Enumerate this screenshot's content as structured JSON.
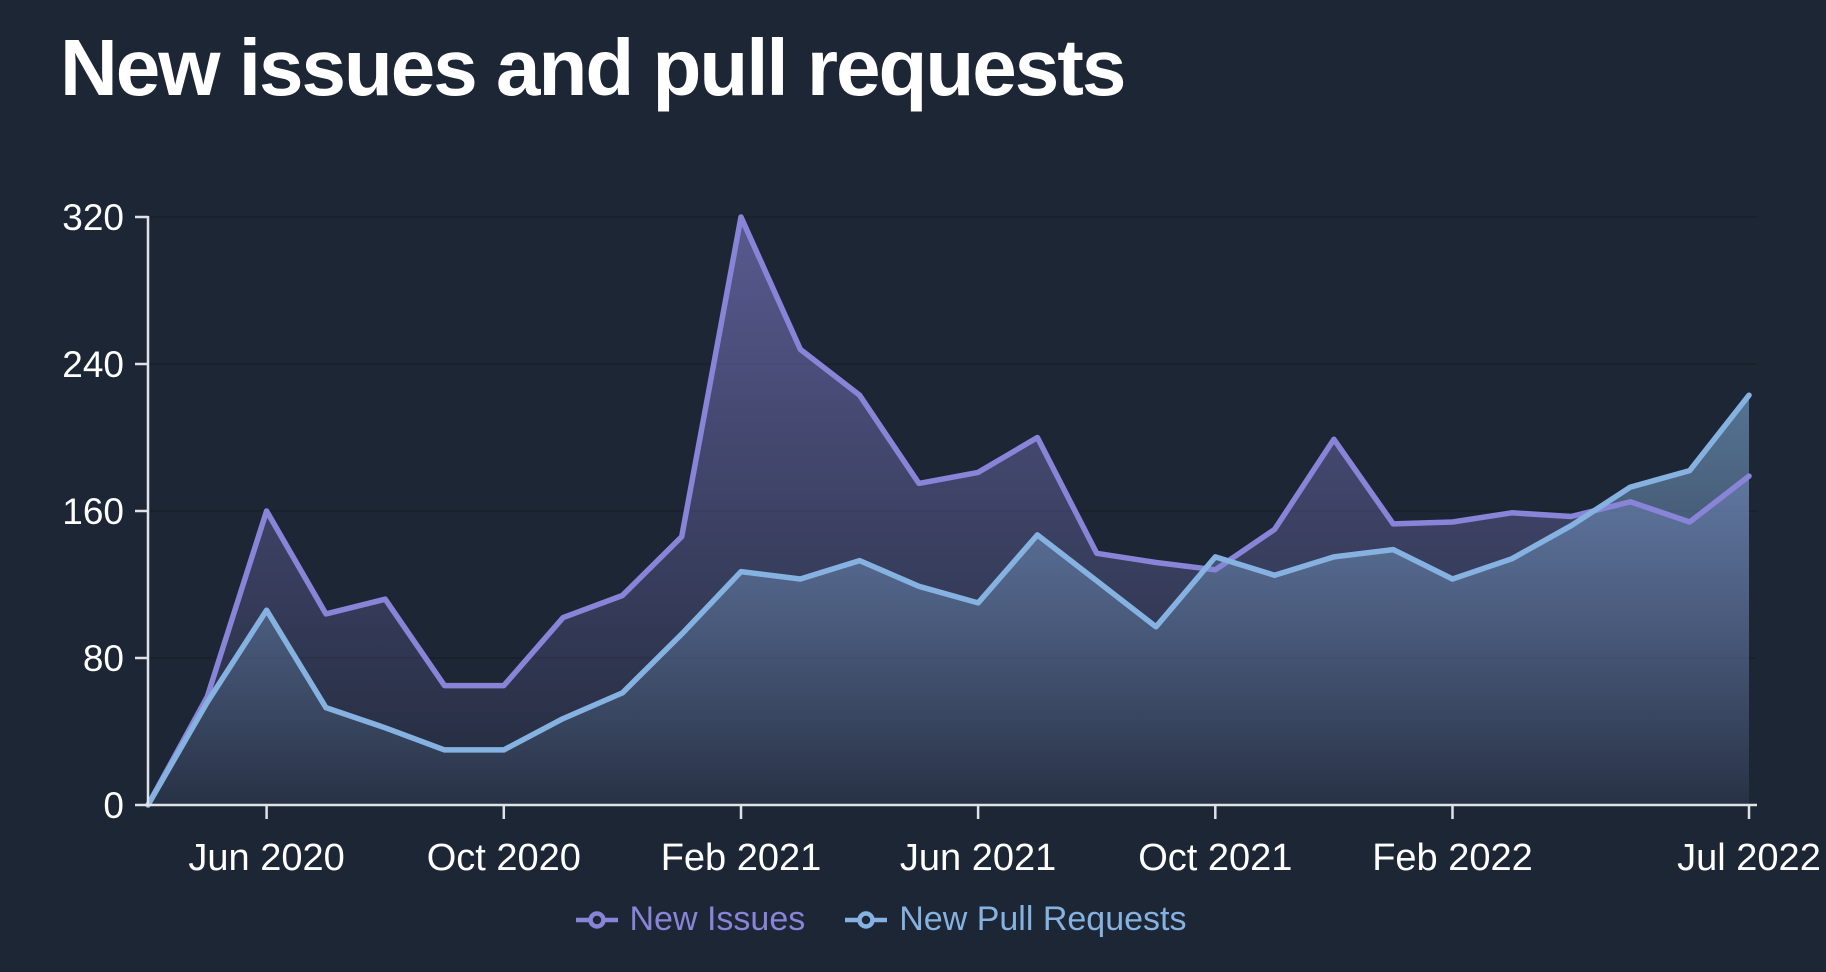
{
  "title": "New issues and pull requests",
  "colors": {
    "background": "#1d2634",
    "text": "#ffffff",
    "axis_line": "#dfe3e8",
    "gridline": "#19212d",
    "new_issues": "#8884d8",
    "new_pull_requests": "#85b2e0"
  },
  "chart_data": {
    "type": "area",
    "title": "New issues and pull requests",
    "x": [
      "Apr 2020",
      "May 2020",
      "Jun 2020",
      "Jul 2020",
      "Aug 2020",
      "Sep 2020",
      "Oct 2020",
      "Nov 2020",
      "Dec 2020",
      "Jan 2021",
      "Feb 2021",
      "Mar 2021",
      "Apr 2021",
      "May 2021",
      "Jun 2021",
      "Jul 2021",
      "Aug 2021",
      "Sep 2021",
      "Oct 2021",
      "Nov 2021",
      "Dec 2021",
      "Jan 2022",
      "Feb 2022",
      "Mar 2022",
      "Apr 2022",
      "May 2022",
      "Jun 2022",
      "Jul 2022"
    ],
    "x_tick_indices": [
      2,
      6,
      10,
      14,
      18,
      22,
      27
    ],
    "x_tick_labels": [
      "Jun 2020",
      "Oct 2020",
      "Feb 2021",
      "Jun 2021",
      "Oct 2021",
      "Feb 2022",
      "Jul 2022"
    ],
    "y_ticks": [
      0,
      80,
      160,
      240,
      320
    ],
    "ylim": [
      0,
      320
    ],
    "grid": "horizontal",
    "legend_position": "bottom",
    "series": [
      {
        "name": "New Issues",
        "color": "#8884d8",
        "values": [
          0,
          59,
          160,
          104,
          112,
          65,
          65,
          102,
          114,
          146,
          320,
          248,
          223,
          175,
          181,
          200,
          137,
          132,
          128,
          150,
          199,
          153,
          154,
          159,
          157,
          165,
          154,
          179
        ]
      },
      {
        "name": "New Pull Requests",
        "color": "#85b2e0",
        "values": [
          0,
          56,
          106,
          53,
          42,
          30,
          30,
          47,
          61,
          93,
          127,
          123,
          133,
          119,
          110,
          147,
          122,
          97,
          135,
          125,
          135,
          139,
          123,
          134,
          152,
          173,
          182,
          223
        ]
      }
    ]
  }
}
